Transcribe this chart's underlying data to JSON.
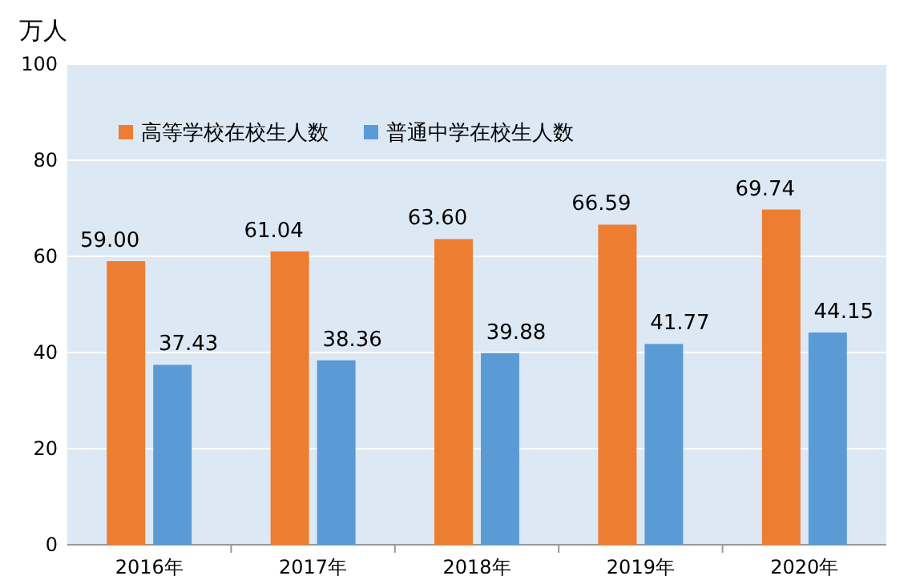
{
  "chart_data": {
    "type": "bar",
    "ylabel": "万人",
    "categories": [
      "2016年",
      "2017年",
      "2018年",
      "2019年",
      "2020年"
    ],
    "series": [
      {
        "name": "高等学校在校生人数",
        "color": "#ed7d31",
        "values": [
          59.0,
          61.04,
          63.6,
          66.59,
          69.74
        ],
        "value_labels": [
          "59.00",
          "61.04",
          "63.60",
          "66.59",
          "69.74"
        ]
      },
      {
        "name": "普通中学在校生人数",
        "color": "#5b9bd5",
        "values": [
          37.43,
          38.36,
          39.88,
          41.77,
          44.15
        ],
        "value_labels": [
          "37.43",
          "38.36",
          "39.88",
          "41.77",
          "44.15"
        ]
      }
    ],
    "ylim": [
      0,
      100
    ],
    "yticks": [
      0,
      20,
      40,
      60,
      80,
      100
    ],
    "grid": "y",
    "legend": "top left"
  }
}
